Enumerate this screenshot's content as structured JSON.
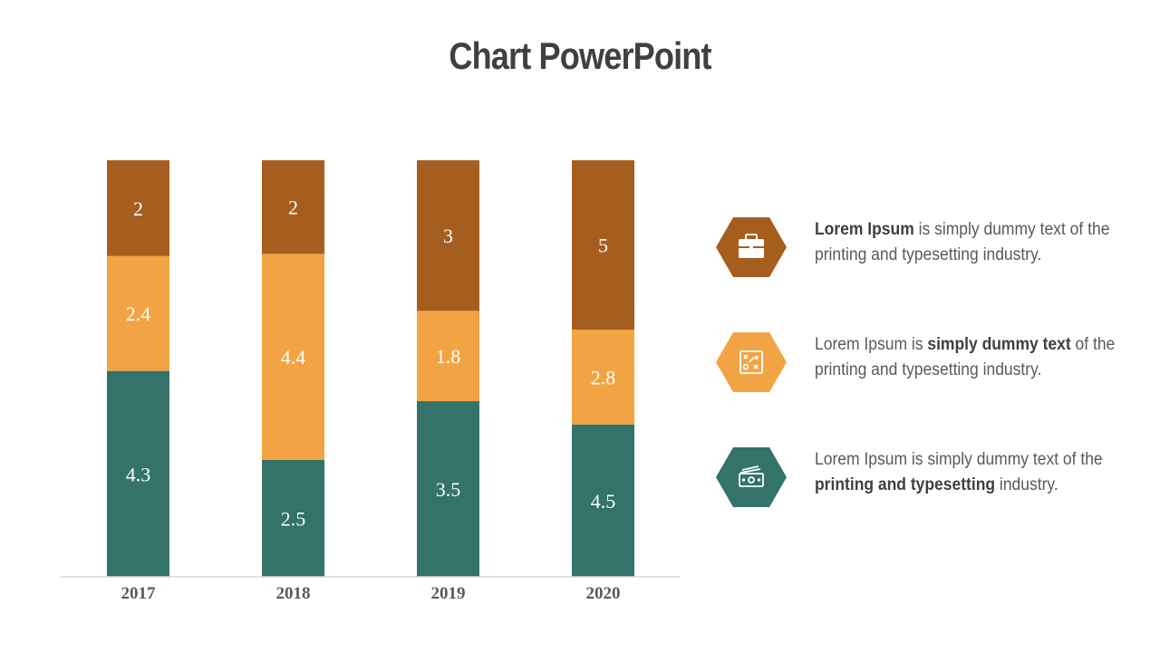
{
  "title": "Chart PowerPoint",
  "colors": {
    "series_bottom": "#33736a",
    "series_middle": "#f2a444",
    "series_top": "#a65e1f",
    "axis": "#d9d9d9"
  },
  "chart_data": {
    "type": "bar",
    "stacked": true,
    "categories": [
      "2017",
      "2018",
      "2019",
      "2020"
    ],
    "series": [
      {
        "values": [
          4.3,
          2.5,
          3.5,
          4.5
        ],
        "color": "#33736a"
      },
      {
        "values": [
          2.4,
          4.4,
          1.8,
          2.8
        ],
        "color": "#f2a444"
      },
      {
        "values": [
          2,
          2,
          3,
          5
        ],
        "color": "#a65e1f"
      }
    ],
    "data_labels": true,
    "grid": false,
    "legend": "none"
  },
  "info": [
    {
      "icon": "briefcase-icon",
      "color": "#a65e1f",
      "before": "",
      "bold": "Lorem Ipsum",
      "after": " is simply dummy text of the printing and typesetting industry."
    },
    {
      "icon": "strategy-board-icon",
      "color": "#f2a444",
      "before": "Lorem Ipsum is ",
      "bold": "simply dummy text",
      "after": " of the printing and typesetting industry."
    },
    {
      "icon": "money-icon",
      "color": "#33736a",
      "before": "Lorem Ipsum is simply dummy text of the ",
      "bold": "printing and typesetting",
      "after": " industry."
    }
  ]
}
